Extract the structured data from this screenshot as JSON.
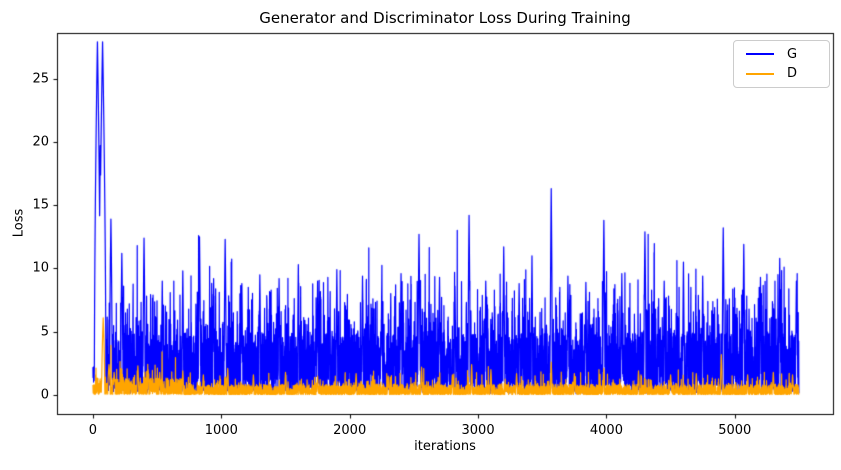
{
  "chart_data": {
    "type": "line",
    "title": "Generator and Discriminator Loss During Training",
    "xlabel": "iterations",
    "ylabel": "Loss",
    "xlim": [
      -280,
      5765
    ],
    "ylim": [
      -1.5,
      28.6
    ],
    "xticks": [
      0,
      1000,
      2000,
      3000,
      4000,
      5000
    ],
    "yticks": [
      0,
      5,
      10,
      15,
      20,
      25
    ],
    "grid": false,
    "background": "#ffffff",
    "text_color": "#000000",
    "spine_color": "#000000",
    "legend": {
      "position": "upper right"
    },
    "n_points": 5500,
    "series": [
      {
        "name": "G",
        "color": "#0000ff",
        "seed": 1337,
        "envelope": {
          "base_min": 0.3,
          "base_amp": 4.6,
          "base_pow": 1.5,
          "spike_p": 0.3,
          "spike_amp": 5.5,
          "spike_pow": 2,
          "tall_p": 0.04,
          "tall_min": 2.5,
          "tall_amp": 3.5,
          "low_p": 0.03,
          "low_base": 0.1,
          "low_amp": 0.5,
          "start_cap": 2.2,
          "start_cap_until": 12
        },
        "peaks": [
          [
            35,
            27.9,
            24
          ],
          [
            75,
            27.9,
            26
          ],
          [
            57,
            19.7,
            10
          ],
          [
            140,
            13.9,
            10
          ],
          [
            225,
            11.2,
            8
          ],
          [
            398,
            12.4,
            8
          ],
          [
            540,
            9.0,
            6
          ],
          [
            700,
            9.8,
            6
          ],
          [
            830,
            12.5,
            8
          ],
          [
            940,
            9.2,
            6
          ],
          [
            1030,
            12.3,
            8
          ],
          [
            1160,
            8.8,
            6
          ],
          [
            1300,
            9.5,
            6
          ],
          [
            1450,
            9.2,
            6
          ],
          [
            1600,
            10.3,
            6
          ],
          [
            1750,
            9.0,
            6
          ],
          [
            1900,
            9.9,
            6
          ],
          [
            2100,
            9.4,
            6
          ],
          [
            2250,
            8.8,
            6
          ],
          [
            2400,
            9.6,
            6
          ],
          [
            2540,
            12.7,
            8
          ],
          [
            2700,
            9.3,
            6
          ],
          [
            2820,
            8.6,
            6
          ],
          [
            2930,
            14.2,
            8
          ],
          [
            3060,
            9.0,
            6
          ],
          [
            3200,
            11.7,
            7
          ],
          [
            3320,
            8.8,
            6
          ],
          [
            3420,
            11.0,
            6
          ],
          [
            3570,
            16.3,
            8
          ],
          [
            3700,
            9.4,
            6
          ],
          [
            3840,
            8.9,
            6
          ],
          [
            3980,
            13.8,
            8
          ],
          [
            4120,
            9.6,
            6
          ],
          [
            4300,
            12.9,
            8
          ],
          [
            4450,
            9.0,
            6
          ],
          [
            4600,
            10.5,
            6
          ],
          [
            4750,
            9.4,
            6
          ],
          [
            4910,
            13.2,
            8
          ],
          [
            5070,
            11.9,
            7
          ],
          [
            5200,
            9.3,
            6
          ],
          [
            5350,
            10.8,
            6
          ],
          [
            5480,
            9.0,
            6
          ]
        ]
      },
      {
        "name": "D",
        "color": "#ffa500",
        "seed": 7,
        "envelope": {
          "base_min": 0.04,
          "base_amp": 0.8,
          "base_pow": 1.8,
          "spike_p": 0.12,
          "spike_amp": 0.95,
          "spike_pow": 2,
          "tall_p": 0.012,
          "tall_min": 0.5,
          "tall_amp": 1.0,
          "low_p": 0,
          "low_base": 0,
          "low_amp": 0,
          "early_mult": 1.6,
          "early_until": 700,
          "start_cap": 0.8,
          "start_cap_until": 20
        },
        "peaks": [
          [
            80,
            6.1,
            12
          ],
          [
            125,
            2.4,
            10
          ],
          [
            165,
            1.8,
            8
          ],
          [
            350,
            2.3,
            6
          ],
          [
            430,
            2.0,
            6
          ],
          [
            520,
            1.8,
            6
          ],
          [
            700,
            1.9,
            6
          ],
          [
            860,
            1.6,
            6
          ],
          [
            1050,
            2.1,
            6
          ],
          [
            1250,
            1.6,
            6
          ],
          [
            1500,
            1.8,
            6
          ],
          [
            1750,
            1.5,
            6
          ],
          [
            2050,
            1.7,
            6
          ],
          [
            2300,
            1.5,
            6
          ],
          [
            2560,
            2.2,
            6
          ],
          [
            2800,
            1.6,
            6
          ],
          [
            2950,
            2.4,
            6
          ],
          [
            3100,
            2.0,
            6
          ],
          [
            3300,
            1.7,
            6
          ],
          [
            3570,
            2.6,
            6
          ],
          [
            3750,
            1.7,
            6
          ],
          [
            3980,
            2.1,
            6
          ],
          [
            4250,
            1.9,
            6
          ],
          [
            4500,
            1.6,
            6
          ],
          [
            4700,
            1.7,
            6
          ],
          [
            4895,
            3.2,
            7
          ],
          [
            5100,
            1.6,
            6
          ],
          [
            5300,
            1.8,
            6
          ],
          [
            5450,
            1.6,
            6
          ]
        ]
      }
    ],
    "summary": {
      "g_initial_spike_max": 27.9,
      "g_typical_band": [
        0.3,
        10
      ],
      "g_largest_mid_peak": 16.3,
      "d_initial_spike_max": 6.1,
      "d_typical_band": [
        0,
        2
      ],
      "d_late_spike": 3.2
    }
  }
}
